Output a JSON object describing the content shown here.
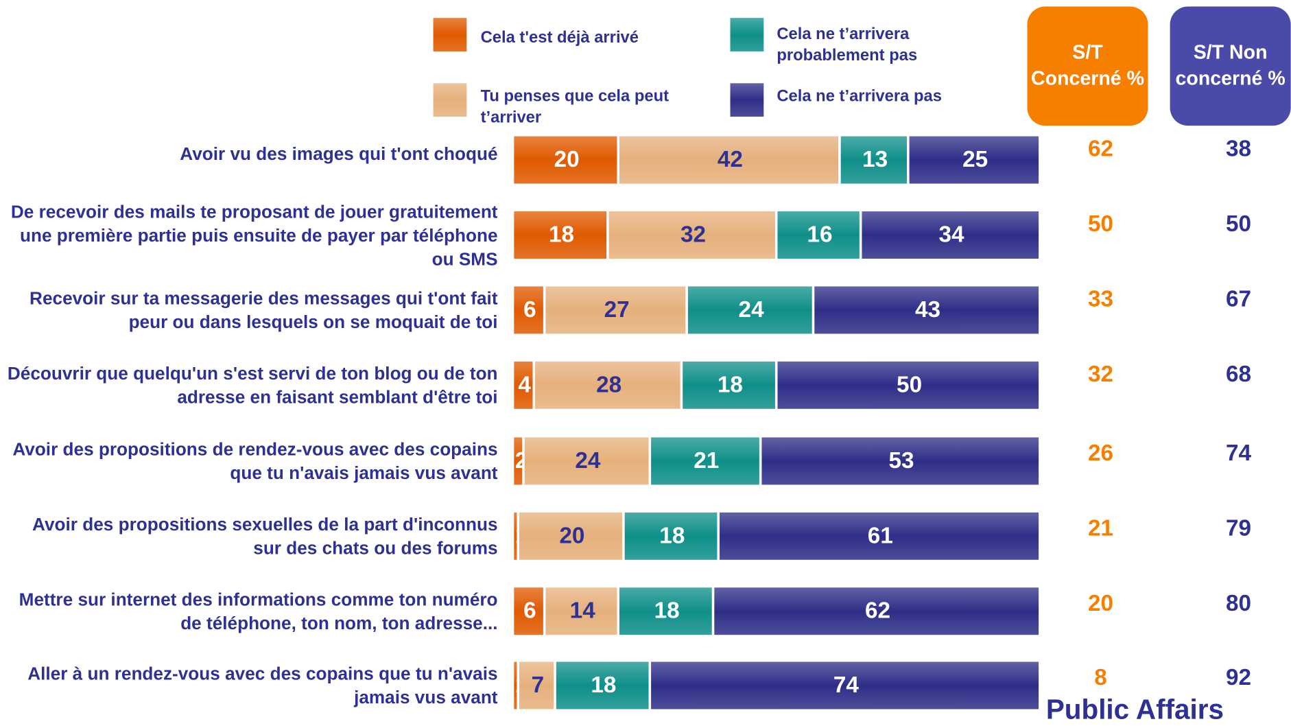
{
  "chart_data": {
    "type": "bar",
    "orientation": "horizontal",
    "stacked": true,
    "categories": [
      "Avoir vu des images qui t'ont choqué",
      "De recevoir des mails te proposant de jouer gratuitement une première partie puis ensuite de payer par téléphone ou SMS",
      "Recevoir sur ta messagerie des messages qui t'ont fait peur ou dans lesquels on se moquait de toi",
      "Découvrir que quelqu'un s'est servi de ton blog ou de ton adresse en faisant semblant d'être toi",
      "Avoir des propositions de rendez-vous avec des copains que tu n'avais jamais vus avant",
      "Avoir des propositions sexuelles de la part d'inconnus sur des chats ou des forums",
      "Mettre sur internet des informations comme ton numéro de téléphone, ton nom, ton adresse...",
      "Aller à un rendez-vous avec des copains que tu n'avais jamais vus avant"
    ],
    "series": [
      {
        "name": "Cela t'est déjà arrivé",
        "color": "#e05a00",
        "values": [
          20,
          18,
          6,
          4,
          2,
          1,
          6,
          1
        ]
      },
      {
        "name": "Tu penses que cela peut t’arriver",
        "color": "#e6b07c",
        "values": [
          42,
          32,
          27,
          28,
          24,
          20,
          14,
          7
        ]
      },
      {
        "name": "Cela ne t’arrivera probablement pas",
        "color": "#0f8f89",
        "values": [
          13,
          16,
          24,
          18,
          21,
          18,
          18,
          18
        ]
      },
      {
        "name": "Cela ne t’arrivera pas",
        "color": "#2e2e88",
        "values": [
          25,
          34,
          43,
          50,
          53,
          61,
          62,
          74
        ]
      }
    ],
    "xlim": [
      0,
      100
    ],
    "columns": [
      {
        "header": "S/T Concerné %",
        "color": "#f77f00",
        "values": [
          62,
          50,
          33,
          32,
          26,
          21,
          20,
          8
        ]
      },
      {
        "header": "S/T Non concerné %",
        "color": "#4a4aa8",
        "values": [
          38,
          50,
          67,
          68,
          74,
          79,
          80,
          92
        ]
      }
    ],
    "footer": "Public Affairs"
  }
}
